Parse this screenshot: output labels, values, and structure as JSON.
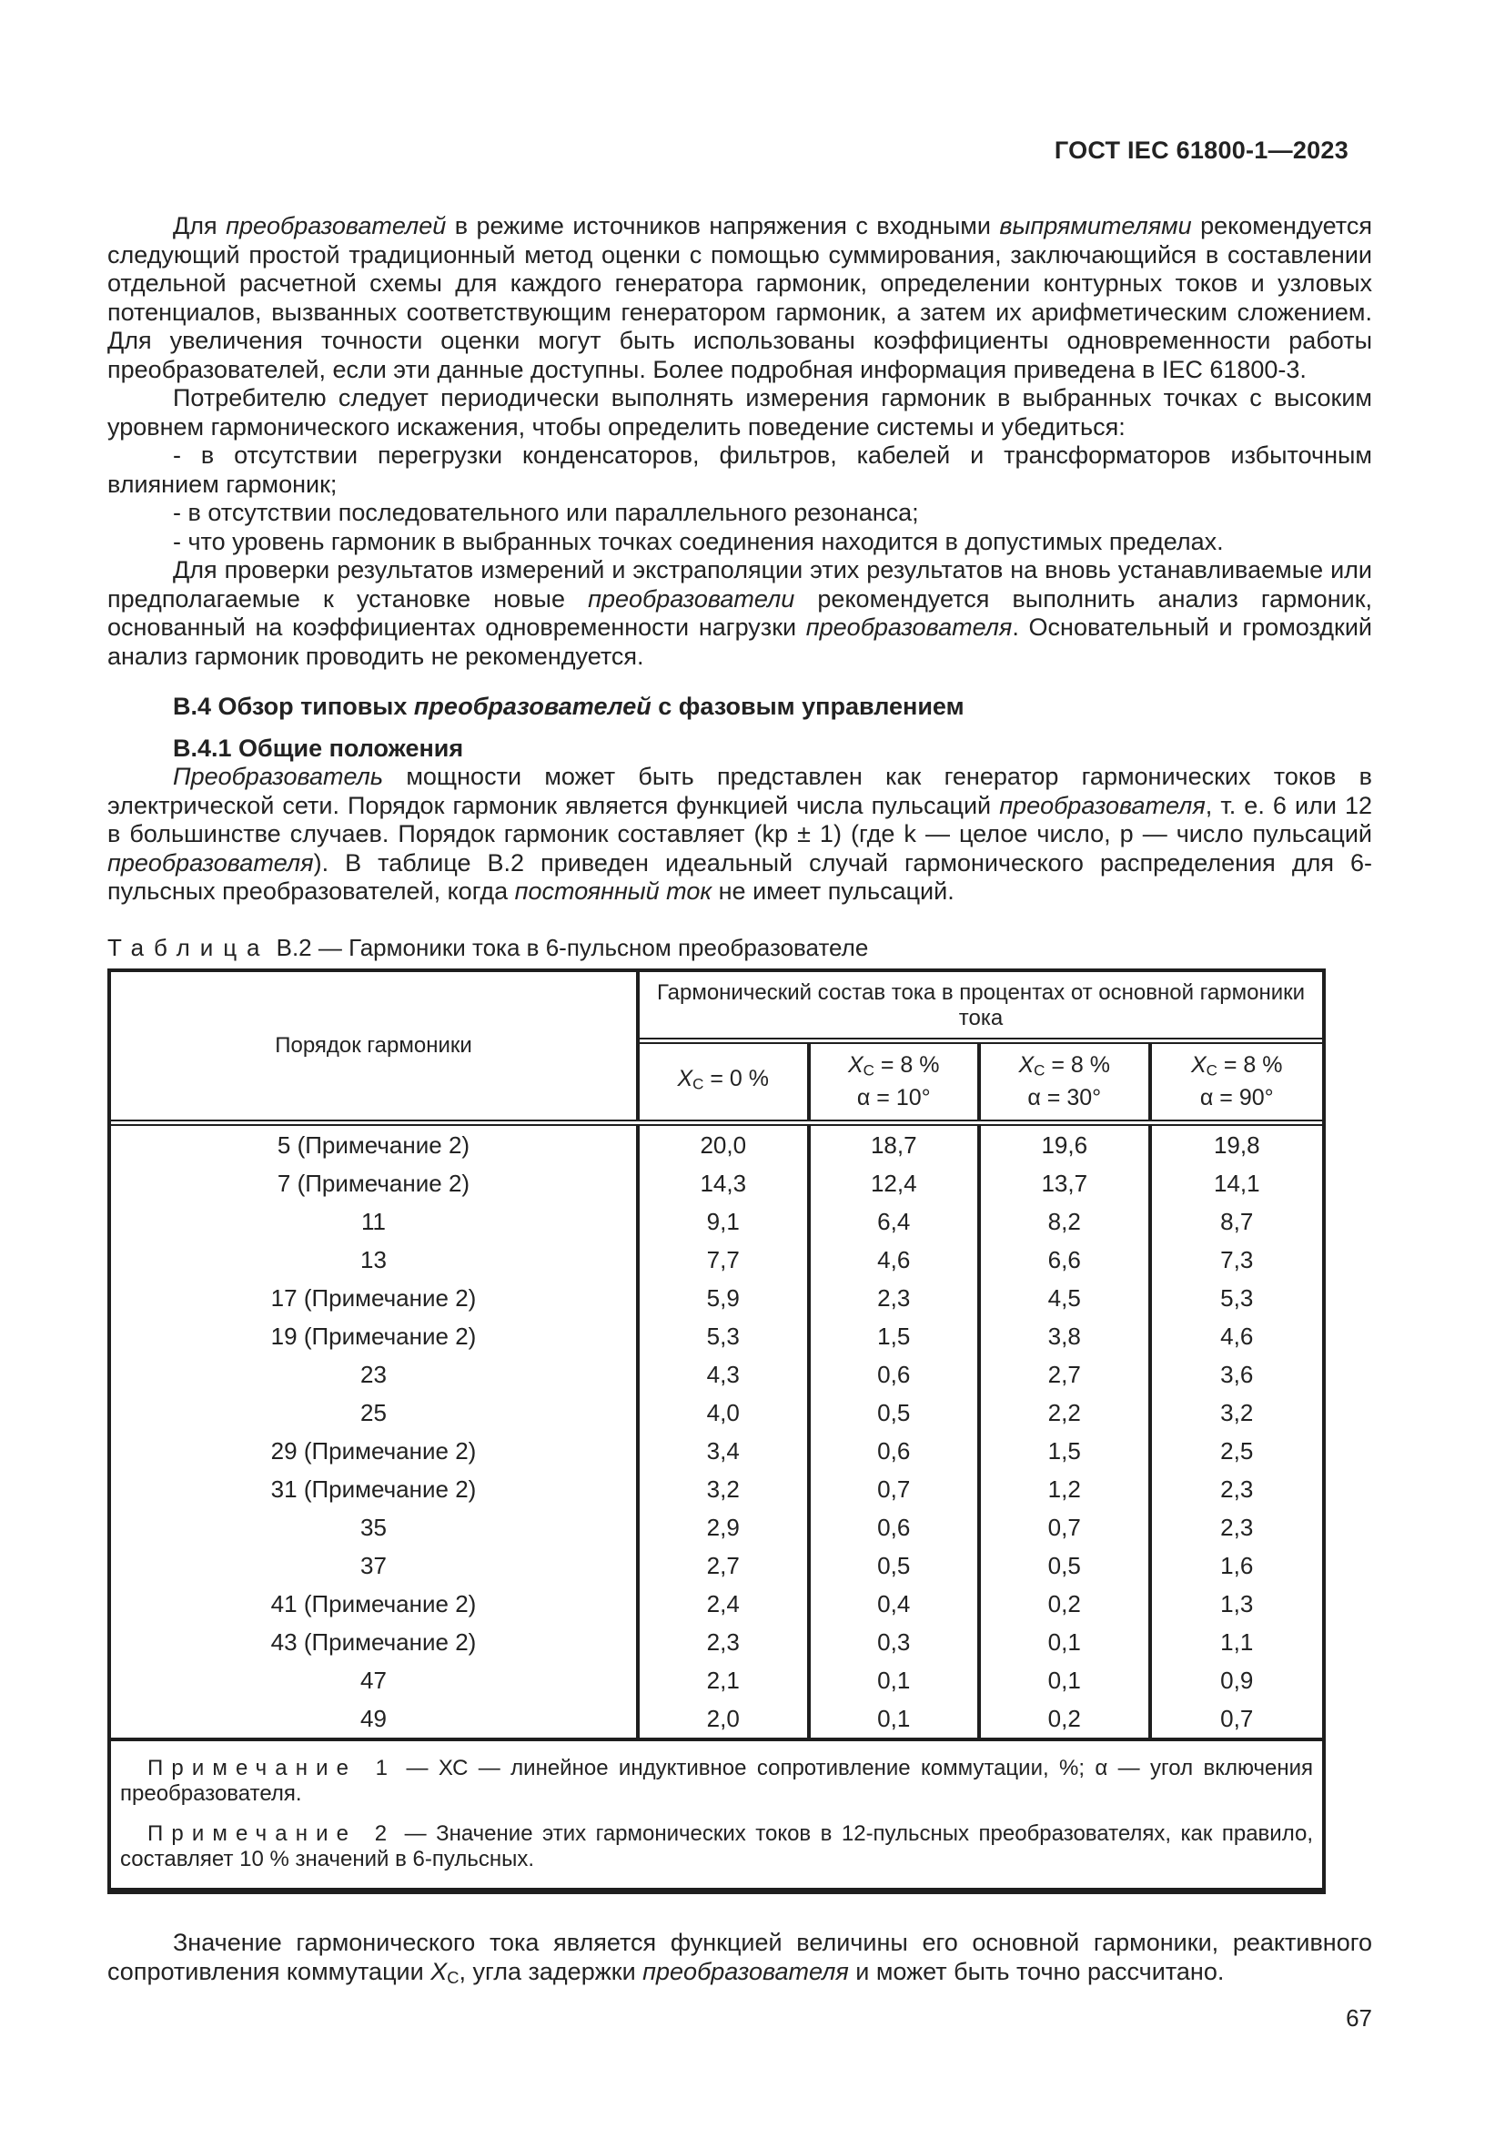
{
  "page_header": "ГОСТ IEC 61800-1—2023",
  "page_number": "67",
  "content": {
    "paras": [
      {
        "runs": [
          {
            "t": "Для "
          },
          {
            "t": "преобразователей",
            "i": true
          },
          {
            "t": " в режиме источников напряжения с входными "
          },
          {
            "t": "выпрямителями",
            "i": true
          },
          {
            "t": " рекомендуется следующий простой традиционный метод оценки с помощью суммирования, заключающийся в составлении отдельной расчетной схемы для каждого генератора гармоник, определении контурных токов и узловых потенциалов, вызванных соответствующим генератором гармоник, а затем их арифметическим сложением. Для увеличения точности оценки могут быть использованы коэффициенты одновременности работы преобразователей, если эти данные доступны. Более подробная информация приведена в IEC 61800-3."
          }
        ]
      },
      {
        "runs": [
          {
            "t": "Потребителю следует периодически выполнять измерения гармоник в выбранных точках с высоким уровнем гармонического искажения, чтобы определить поведение системы и убедиться:"
          }
        ]
      },
      {
        "runs": [
          {
            "t": "- в отсутствии перегрузки конденсаторов, фильтров, кабелей и трансформаторов избыточным влиянием гармоник;"
          }
        ]
      },
      {
        "runs": [
          {
            "t": "- в отсутствии последовательного или параллельного резонанса;"
          }
        ]
      },
      {
        "runs": [
          {
            "t": "- что уровень гармоник в выбранных точках соединения находится в допустимых пределах."
          }
        ]
      },
      {
        "runs": [
          {
            "t": "Для проверки результатов измерений и экстраполяции этих результатов на вновь устанавливаемые или предполагаемые к установке новые "
          },
          {
            "t": "преобразователи",
            "i": true
          },
          {
            "t": " рекомендуется выполнить анализ гармоник, основанный на коэффициентах одновременности нагрузки "
          },
          {
            "t": "преобразователя",
            "i": true
          },
          {
            "t": ". Основательный и громоздкий анализ гармоник проводить не рекомендуется."
          }
        ]
      }
    ],
    "heading_section_runs": [
      {
        "t": "В.4 Обзор типовых ",
        "b": true
      },
      {
        "t": "преобразователей",
        "b": true,
        "i": true
      },
      {
        "t": " с фазовым управлением",
        "b": true
      }
    ],
    "heading_sub_runs": [
      {
        "t": "В.4.1 Общие положения",
        "b": true
      }
    ],
    "para_general_runs": [
      {
        "t": "Преобразователь",
        "i": true
      },
      {
        "t": " мощности может быть представлен как генератор гармонических токов в электрической сети. Порядок гармоник является функцией числа пульсаций "
      },
      {
        "t": "преобразователя",
        "i": true
      },
      {
        "t": ", т. е. 6 или 12 в большинстве случаев. Порядок гармоник составляет (kp ± 1) (где k — целое число, p — число пульсаций "
      },
      {
        "t": "преобразователя",
        "i": true
      },
      {
        "t": "). В таблице В.2 приведен идеальный случай гармонического распределения для 6-пульсных преобразователей, когда "
      },
      {
        "t": "постоянный ток",
        "i": true
      },
      {
        "t": " не имеет пульсаций."
      }
    ],
    "table": {
      "caption_runs": [
        {
          "t": "Таблица",
          "sp": true
        },
        {
          "t": " В.2 — Гармоники тока в 6-пульсном преобразователе"
        }
      ],
      "col_order_header": "Порядок гармоники",
      "span_header": "Гармонический состав тока в процентах от основной гармоники тока",
      "subcols": [
        {
          "sym": "X",
          "sub": "C",
          "val": "= 0 %",
          "alpha": ""
        },
        {
          "sym": "X",
          "sub": "C",
          "val": "= 8 %",
          "alpha": "α = 10°"
        },
        {
          "sym": "X",
          "sub": "C",
          "val": "= 8 %",
          "alpha": "α = 30°"
        },
        {
          "sym": "X",
          "sub": "C",
          "val": "= 8 %",
          "alpha": "α = 90°"
        }
      ],
      "rows": [
        {
          "order": "5 (Примечание  2)",
          "values": [
            "20,0",
            "18,7",
            "19,6",
            "19,8"
          ]
        },
        {
          "order": "7 (Примечание  2)",
          "values": [
            "14,3",
            "12,4",
            "13,7",
            "14,1"
          ]
        },
        {
          "order": "11",
          "values": [
            "9,1",
            "6,4",
            "8,2",
            "8,7"
          ]
        },
        {
          "order": "13",
          "values": [
            "7,7",
            "4,6",
            "6,6",
            "7,3"
          ]
        },
        {
          "order": "17 (Примечание  2)",
          "values": [
            "5,9",
            "2,3",
            "4,5",
            "5,3"
          ]
        },
        {
          "order": "19 (Примечание  2)",
          "values": [
            "5,3",
            "1,5",
            "3,8",
            "4,6"
          ]
        },
        {
          "order": "23",
          "values": [
            "4,3",
            "0,6",
            "2,7",
            "3,6"
          ]
        },
        {
          "order": "25",
          "values": [
            "4,0",
            "0,5",
            "2,2",
            "3,2"
          ]
        },
        {
          "order": "29 (Примечание  2)",
          "values": [
            "3,4",
            "0,6",
            "1,5",
            "2,5"
          ]
        },
        {
          "order": "31 (Примечание  2)",
          "values": [
            "3,2",
            "0,7",
            "1,2",
            "2,3"
          ]
        },
        {
          "order": "35",
          "values": [
            "2,9",
            "0,6",
            "0,7",
            "2,3"
          ]
        },
        {
          "order": "37",
          "values": [
            "2,7",
            "0,5",
            "0,5",
            "1,6"
          ]
        },
        {
          "order": "41 (Примечание  2)",
          "values": [
            "2,4",
            "0,4",
            "0,2",
            "1,3"
          ]
        },
        {
          "order": "43 (Примечание  2)",
          "values": [
            "2,3",
            "0,3",
            "0,1",
            "1,1"
          ]
        },
        {
          "order": "47",
          "values": [
            "2,1",
            "0,1",
            "0,1",
            "0,9"
          ]
        },
        {
          "order": "49",
          "values": [
            "2,0",
            "0,1",
            "0,2",
            "0,7"
          ]
        }
      ],
      "notes": [
        {
          "label": "Примечание 1",
          "text": " — ХС — линейное индуктивное сопротивление коммутации, %; α — угол включения преобразователя."
        },
        {
          "label": "Примечание 2",
          "text": " — Значение этих гармонических токов в 12-пульсных преобразователях, как правило, составляет 10 % значений в 6-пульсных."
        }
      ]
    },
    "para_bottom_runs": [
      {
        "t": "Значение гармонического тока является функцией величины его основной гармоники, реактивного сопротивления коммутации "
      },
      {
        "t": "X",
        "i": true
      },
      {
        "t": "C",
        "sub": true
      },
      {
        "t": ", угла задержки "
      },
      {
        "t": "преобразователя",
        "i": true
      },
      {
        "t": " и может быть точно рассчитано."
      }
    ]
  }
}
